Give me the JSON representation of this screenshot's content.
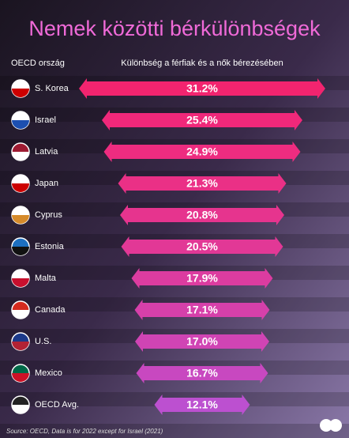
{
  "chart_data": {
    "type": "bar",
    "orientation": "horizontal",
    "title": "Nemek közötti bérkülönbségek",
    "category_header": "OECD ország",
    "value_header": "Különbség a férfiak és a nők bérezésében",
    "categories": [
      "S. Korea",
      "Israel",
      "Latvia",
      "Japan",
      "Cyprus",
      "Estonia",
      "Malta",
      "Canada",
      "U.S.",
      "Mexico",
      "OECD Avg."
    ],
    "values": [
      31.2,
      25.4,
      24.9,
      21.3,
      20.8,
      20.5,
      17.9,
      17.1,
      17.0,
      16.7,
      12.1
    ],
    "value_labels": [
      "31.2%",
      "25.4%",
      "24.9%",
      "21.3%",
      "20.8%",
      "20.5%",
      "17.9%",
      "17.1%",
      "17.0%",
      "16.7%",
      "12.1%"
    ],
    "colors": [
      "#f2246f",
      "#f0287a",
      "#ee2c80",
      "#ea3086",
      "#e6348e",
      "#e23896",
      "#dc3ca0",
      "#d640aa",
      "#d044b4",
      "#c848c0",
      "#bc50d0"
    ],
    "source": "Source: OECD, Data is for 2022 except for Israel (2021)"
  }
}
